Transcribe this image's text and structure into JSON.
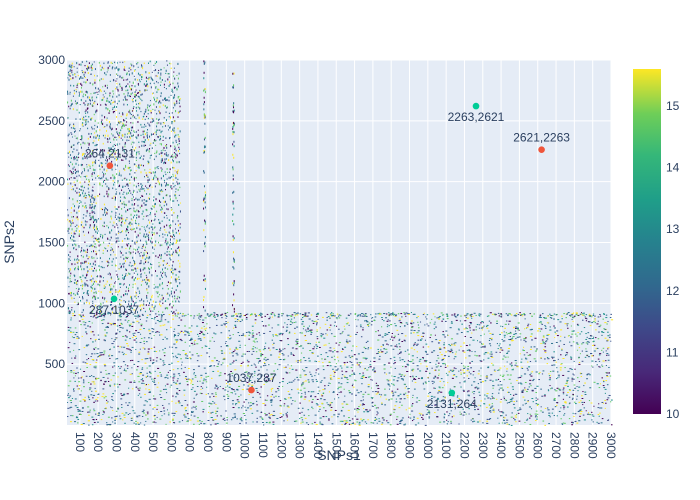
{
  "chart_data": {
    "type": "heatmap",
    "xlabel": "SNPs1",
    "ylabel": "SNPs2",
    "xlim": [
      30,
      3000
    ],
    "ylim": [
      0,
      3000
    ],
    "x_ticks": [
      100,
      200,
      300,
      400,
      500,
      600,
      700,
      800,
      900,
      1000,
      1100,
      1200,
      1300,
      1400,
      1500,
      1600,
      1700,
      1800,
      1900,
      2000,
      2100,
      2200,
      2300,
      2400,
      2500,
      2600,
      2700,
      2800,
      2900,
      3000
    ],
    "y_ticks": [
      500,
      1000,
      1500,
      2000,
      2500,
      3000
    ],
    "colorbar": {
      "min": 10,
      "max": 15.6,
      "ticks": [
        10,
        11,
        12,
        13,
        14,
        15
      ],
      "colorscale": "viridis"
    },
    "grid": true,
    "highlight_points": [
      {
        "label": "264,2131",
        "x": 264,
        "y": 2131,
        "color": "#ef553b"
      },
      {
        "label": "2263,2621",
        "x": 2263,
        "y": 2621,
        "color": "#00cc96"
      },
      {
        "label": "2621,2263",
        "x": 2621,
        "y": 2263,
        "color": "#ef553b"
      },
      {
        "label": "287,1037",
        "x": 287,
        "y": 1037,
        "color": "#00cc96"
      },
      {
        "label": "1037,287",
        "x": 1037,
        "y": 287,
        "color": "#ef553b"
      },
      {
        "label": "2131,264",
        "x": 2131,
        "y": 264,
        "color": "#00cc96"
      }
    ]
  }
}
